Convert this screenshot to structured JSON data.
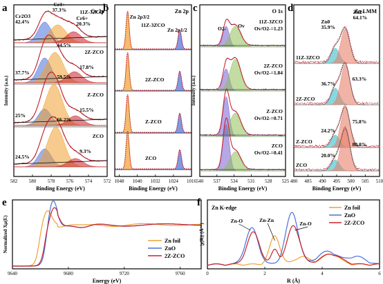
{
  "figure": {
    "panel_letters": [
      "a",
      "b",
      "c",
      "d",
      "e",
      "f"
    ]
  },
  "colors": {
    "black": "#000000",
    "orange": "#f0a030",
    "blue": "#4a6fd8",
    "red": "#c8202a",
    "green": "#8fbf5a",
    "purple": "#7a5fd0",
    "cyan": "#3bbcc8",
    "salmon": "#e8806a",
    "navy": "#1f3a9a"
  },
  "chart_data": [
    {
      "id": "a",
      "type": "line",
      "title": "Cr 2p",
      "xlabel": "Binding Energy (eV)",
      "ylabel": "Intensity (a.u.)",
      "xlim": [
        582,
        572
      ],
      "xticks": [
        572,
        574,
        576,
        578,
        580,
        582
      ],
      "series": [
        {
          "name": "11Z-3ZCO",
          "peaks": [
            {
              "label": "Cr2O3",
              "pct": "42.4%",
              "center": 575.3
            },
            {
              "label": "Cr3+",
              "pct": "37.3%",
              "center": 576.7
            },
            {
              "label": "Cr6+",
              "pct": "20.3%",
              "center": 578.4
            }
          ]
        },
        {
          "name": "2Z-ZCO",
          "peaks": [
            {
              "pct": "37.7%",
              "center": 575.3
            },
            {
              "pct": "44.5%",
              "center": 576.4
            },
            {
              "pct": "17.8%",
              "center": 578.5
            }
          ]
        },
        {
          "name": "Z-ZCO",
          "peaks": [
            {
              "pct": "25%",
              "center": 575.3
            },
            {
              "pct": "59.5%",
              "center": 576.3
            },
            {
              "pct": "15.5%",
              "center": 578.6
            }
          ]
        },
        {
          "name": "ZCO",
          "peaks": [
            {
              "pct": "24.5%",
              "center": 575.3
            },
            {
              "pct": "66.2%",
              "center": 576.5
            },
            {
              "pct": "9.3%",
              "center": 578.6
            }
          ]
        }
      ]
    },
    {
      "id": "b",
      "type": "line",
      "title": "Zn 2p",
      "xlabel": "Binding Energy (eV)",
      "ylabel": "",
      "xlim": [
        1050,
        1016
      ],
      "xticks": [
        1016,
        1024,
        1032,
        1040,
        1048
      ],
      "peak_labels": [
        "Zn 2p3/2",
        "Zn 2p1/2"
      ],
      "peak_centers": [
        1021.7,
        1044.8
      ],
      "series": [
        {
          "name": "11Z-3ZCO"
        },
        {
          "name": "2Z-ZCO"
        },
        {
          "name": "Z-ZCO"
        },
        {
          "name": "ZCO"
        }
      ]
    },
    {
      "id": "c",
      "type": "line",
      "title": "O 1s",
      "xlabel": "Binding Energy (eV)",
      "ylabel": "Intensity (a.u.)",
      "xlim": [
        540,
        525
      ],
      "xticks": [
        525,
        528,
        531,
        534,
        537,
        540
      ],
      "peak_labels": [
        "O2-",
        "Ov"
      ],
      "peak_centers": [
        529.6,
        531.2
      ],
      "series": [
        {
          "name": "11Z-3ZCO",
          "ratio": "Ov/O2-=1.23"
        },
        {
          "name": "2Z-ZCO",
          "ratio": "Ov/O2-=1.84"
        },
        {
          "name": "Z-ZCO",
          "ratio": "Ov/O2-=0.71"
        },
        {
          "name": "ZCO",
          "ratio": "Ov/O2-=0.41"
        }
      ]
    },
    {
      "id": "d",
      "type": "line",
      "title": "Zn LMM",
      "xlabel": "Binding Energy (eV)",
      "ylabel": "",
      "xlim": [
        480,
        510
      ],
      "xticks": [
        480,
        485,
        490,
        495,
        500,
        505,
        510
      ],
      "series": [
        {
          "name": "11Z-3ZCO",
          "peaks": [
            {
              "label": "Zn0",
              "pct": "35.9%"
            },
            {
              "label": "Zn2+",
              "pct": "64.1%"
            }
          ]
        },
        {
          "name": "2Z-ZCO",
          "peaks": [
            {
              "pct": "36.7%"
            },
            {
              "pct": "63.3%"
            }
          ]
        },
        {
          "name": "Z-ZCO",
          "peaks": [
            {
              "pct": "24.2%"
            },
            {
              "pct": "75.8%"
            }
          ]
        },
        {
          "name": "ZCO",
          "peaks": [
            {
              "pct": "20.0%"
            },
            {
              "pct": "80.0%"
            }
          ]
        }
      ]
    },
    {
      "id": "e",
      "type": "line",
      "title": "",
      "xlabel": "Energy (eV)",
      "ylabel": "Normalized Xμ(E)",
      "xlim": [
        9640,
        9775
      ],
      "xticks": [
        9640,
        9680,
        9720,
        9760
      ],
      "legend": "bottom-right",
      "series": [
        {
          "name": "Zn foil"
        },
        {
          "name": "ZnO"
        },
        {
          "name": "2Z-ZCO"
        }
      ]
    },
    {
      "id": "f",
      "type": "line",
      "title": "Zn K-edge",
      "xlabel": "R (Å)",
      "ylabel": "|χ(R)| (Å⁻³)",
      "xlim": [
        0,
        6
      ],
      "xticks": [
        0,
        2,
        4,
        6
      ],
      "legend": "top-right",
      "annotations": [
        "Zn-O",
        "Zn-Zn",
        "Zn-O"
      ],
      "series": [
        {
          "name": "Zn foil"
        },
        {
          "name": "ZnO"
        },
        {
          "name": "2Z-ZCO"
        }
      ]
    }
  ]
}
